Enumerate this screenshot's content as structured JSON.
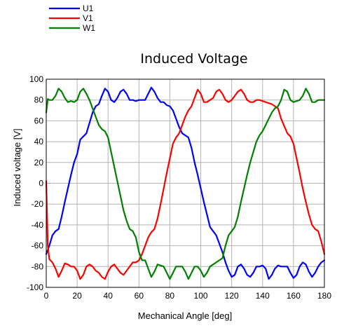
{
  "chart_data": {
    "type": "line",
    "title": "Induced Voltage",
    "xlabel": "Mechanical Angle [deg]",
    "ylabel": "Induced voltage [V]",
    "xlim": [
      0,
      180
    ],
    "ylim": [
      -100,
      100
    ],
    "x_ticks": [
      "0",
      "20",
      "40",
      "60",
      "80",
      "100",
      "120",
      "140",
      "160",
      "180"
    ],
    "y_ticks": [
      "-100",
      "-80",
      "-60",
      "-40",
      "-20",
      "0",
      "20",
      "40",
      "60",
      "80",
      "100"
    ],
    "grid": true,
    "legend": "top-left",
    "series": [
      {
        "name": "U1",
        "color": "#0000ff",
        "points": [
          [
            0,
            -68
          ],
          [
            2,
            -60
          ],
          [
            4,
            -50
          ],
          [
            6,
            -46
          ],
          [
            8,
            -44
          ],
          [
            10,
            -32
          ],
          [
            12,
            -18
          ],
          [
            14,
            -5
          ],
          [
            16,
            8
          ],
          [
            18,
            20
          ],
          [
            20,
            28
          ],
          [
            22,
            42
          ],
          [
            24,
            45
          ],
          [
            26,
            48
          ],
          [
            28,
            58
          ],
          [
            30,
            68
          ],
          [
            32,
            74
          ],
          [
            34,
            76
          ],
          [
            36,
            84
          ],
          [
            38,
            91
          ],
          [
            40,
            88
          ],
          [
            42,
            80
          ],
          [
            44,
            78
          ],
          [
            46,
            82
          ],
          [
            48,
            88
          ],
          [
            50,
            90
          ],
          [
            52,
            86
          ],
          [
            54,
            80
          ],
          [
            56,
            80
          ],
          [
            58,
            79
          ],
          [
            60,
            80
          ],
          [
            62,
            80
          ],
          [
            64,
            80
          ],
          [
            66,
            86
          ],
          [
            68,
            92
          ],
          [
            70,
            88
          ],
          [
            72,
            82
          ],
          [
            74,
            78
          ],
          [
            76,
            78
          ],
          [
            78,
            75
          ],
          [
            80,
            74
          ],
          [
            82,
            70
          ],
          [
            84,
            62
          ],
          [
            86,
            54
          ],
          [
            88,
            48
          ],
          [
            90,
            46
          ],
          [
            92,
            44
          ],
          [
            94,
            34
          ],
          [
            96,
            20
          ],
          [
            98,
            8
          ],
          [
            100,
            -5
          ],
          [
            102,
            -18
          ],
          [
            104,
            -30
          ],
          [
            106,
            -42
          ],
          [
            108,
            -46
          ],
          [
            110,
            -50
          ],
          [
            112,
            -58
          ],
          [
            114,
            -66
          ],
          [
            116,
            -76
          ],
          [
            118,
            -84
          ],
          [
            120,
            -90
          ],
          [
            122,
            -88
          ],
          [
            124,
            -80
          ],
          [
            126,
            -78
          ],
          [
            128,
            -82
          ],
          [
            130,
            -88
          ],
          [
            132,
            -90
          ],
          [
            134,
            -86
          ],
          [
            136,
            -80
          ],
          [
            138,
            -80
          ],
          [
            140,
            -79
          ],
          [
            142,
            -82
          ],
          [
            144,
            -92
          ],
          [
            146,
            -88
          ],
          [
            148,
            -82
          ],
          [
            150,
            -79
          ],
          [
            152,
            -80
          ],
          [
            154,
            -80
          ],
          [
            156,
            -80
          ],
          [
            158,
            -86
          ],
          [
            160,
            -91
          ],
          [
            162,
            -88
          ],
          [
            164,
            -80
          ],
          [
            166,
            -76
          ],
          [
            168,
            -78
          ],
          [
            170,
            -85
          ],
          [
            172,
            -90
          ],
          [
            174,
            -86
          ],
          [
            176,
            -80
          ],
          [
            178,
            -76
          ],
          [
            180,
            -74
          ]
        ]
      },
      {
        "name": "V1",
        "color": "#ff0000",
        "points": [
          [
            0,
            2
          ],
          [
            1,
            -60
          ],
          [
            2,
            -73
          ],
          [
            4,
            -76
          ],
          [
            6,
            -82
          ],
          [
            8,
            -90
          ],
          [
            10,
            -84
          ],
          [
            12,
            -77
          ],
          [
            14,
            -78
          ],
          [
            16,
            -80
          ],
          [
            18,
            -80
          ],
          [
            20,
            -84
          ],
          [
            22,
            -92
          ],
          [
            24,
            -88
          ],
          [
            26,
            -80
          ],
          [
            28,
            -78
          ],
          [
            30,
            -80
          ],
          [
            32,
            -84
          ],
          [
            34,
            -86
          ],
          [
            36,
            -90
          ],
          [
            38,
            -92
          ],
          [
            40,
            -85
          ],
          [
            42,
            -80
          ],
          [
            44,
            -78
          ],
          [
            46,
            -82
          ],
          [
            48,
            -86
          ],
          [
            50,
            -88
          ],
          [
            52,
            -84
          ],
          [
            54,
            -80
          ],
          [
            56,
            -76
          ],
          [
            58,
            -76
          ],
          [
            60,
            -74
          ],
          [
            62,
            -68
          ],
          [
            64,
            -60
          ],
          [
            66,
            -52
          ],
          [
            68,
            -47
          ],
          [
            70,
            -44
          ],
          [
            72,
            -34
          ],
          [
            74,
            -20
          ],
          [
            76,
            -5
          ],
          [
            78,
            10
          ],
          [
            80,
            24
          ],
          [
            82,
            38
          ],
          [
            84,
            44
          ],
          [
            86,
            48
          ],
          [
            88,
            56
          ],
          [
            90,
            64
          ],
          [
            92,
            70
          ],
          [
            94,
            74
          ],
          [
            96,
            82
          ],
          [
            98,
            90
          ],
          [
            100,
            86
          ],
          [
            102,
            78
          ],
          [
            104,
            78
          ],
          [
            106,
            80
          ],
          [
            108,
            82
          ],
          [
            110,
            88
          ],
          [
            112,
            90
          ],
          [
            114,
            86
          ],
          [
            116,
            80
          ],
          [
            118,
            78
          ],
          [
            120,
            80
          ],
          [
            122,
            84
          ],
          [
            124,
            88
          ],
          [
            126,
            90
          ],
          [
            128,
            86
          ],
          [
            130,
            80
          ],
          [
            132,
            78
          ],
          [
            134,
            78
          ],
          [
            136,
            80
          ],
          [
            138,
            80
          ],
          [
            140,
            79
          ],
          [
            142,
            78
          ],
          [
            144,
            77
          ],
          [
            146,
            76
          ],
          [
            148,
            74
          ],
          [
            150,
            72
          ],
          [
            152,
            62
          ],
          [
            154,
            55
          ],
          [
            156,
            48
          ],
          [
            158,
            45
          ],
          [
            160,
            38
          ],
          [
            162,
            24
          ],
          [
            164,
            10
          ],
          [
            166,
            -5
          ],
          [
            168,
            -18
          ],
          [
            170,
            -30
          ],
          [
            172,
            -40
          ],
          [
            174,
            -44
          ],
          [
            176,
            -46
          ],
          [
            178,
            -56
          ],
          [
            180,
            -68
          ]
        ]
      },
      {
        "name": "W1",
        "color": "#008000",
        "points": [
          [
            0,
            68
          ],
          [
            1,
            81
          ],
          [
            2,
            80
          ],
          [
            4,
            80
          ],
          [
            6,
            84
          ],
          [
            8,
            91
          ],
          [
            10,
            88
          ],
          [
            12,
            82
          ],
          [
            14,
            78
          ],
          [
            16,
            79
          ],
          [
            18,
            78
          ],
          [
            20,
            80
          ],
          [
            22,
            88
          ],
          [
            24,
            91
          ],
          [
            26,
            86
          ],
          [
            28,
            80
          ],
          [
            30,
            72
          ],
          [
            32,
            64
          ],
          [
            34,
            56
          ],
          [
            36,
            52
          ],
          [
            38,
            50
          ],
          [
            40,
            44
          ],
          [
            42,
            30
          ],
          [
            44,
            16
          ],
          [
            46,
            2
          ],
          [
            48,
            -12
          ],
          [
            50,
            -26
          ],
          [
            52,
            -36
          ],
          [
            54,
            -44
          ],
          [
            56,
            -46
          ],
          [
            58,
            -52
          ],
          [
            60,
            -66
          ],
          [
            62,
            -74
          ],
          [
            64,
            -74
          ],
          [
            66,
            -82
          ],
          [
            68,
            -90
          ],
          [
            70,
            -85
          ],
          [
            72,
            -78
          ],
          [
            74,
            -79
          ],
          [
            76,
            -80
          ],
          [
            78,
            -86
          ],
          [
            80,
            -92
          ],
          [
            82,
            -86
          ],
          [
            84,
            -80
          ],
          [
            86,
            -80
          ],
          [
            88,
            -80
          ],
          [
            90,
            -85
          ],
          [
            92,
            -92
          ],
          [
            94,
            -86
          ],
          [
            96,
            -80
          ],
          [
            98,
            -80
          ],
          [
            100,
            -84
          ],
          [
            102,
            -90
          ],
          [
            104,
            -86
          ],
          [
            106,
            -80
          ],
          [
            108,
            -78
          ],
          [
            110,
            -76
          ],
          [
            112,
            -74
          ],
          [
            114,
            -72
          ],
          [
            116,
            -60
          ],
          [
            118,
            -50
          ],
          [
            120,
            -46
          ],
          [
            122,
            -42
          ],
          [
            124,
            -32
          ],
          [
            126,
            -18
          ],
          [
            128,
            -5
          ],
          [
            130,
            8
          ],
          [
            132,
            20
          ],
          [
            134,
            30
          ],
          [
            136,
            40
          ],
          [
            138,
            46
          ],
          [
            140,
            50
          ],
          [
            142,
            56
          ],
          [
            144,
            62
          ],
          [
            146,
            68
          ],
          [
            148,
            72
          ],
          [
            150,
            74
          ],
          [
            152,
            80
          ],
          [
            154,
            90
          ],
          [
            156,
            88
          ],
          [
            158,
            80
          ],
          [
            160,
            78
          ],
          [
            162,
            79
          ],
          [
            164,
            80
          ],
          [
            166,
            84
          ],
          [
            168,
            91
          ],
          [
            170,
            86
          ],
          [
            172,
            78
          ],
          [
            174,
            78
          ],
          [
            176,
            80
          ],
          [
            178,
            80
          ],
          [
            180,
            80
          ]
        ]
      }
    ]
  }
}
